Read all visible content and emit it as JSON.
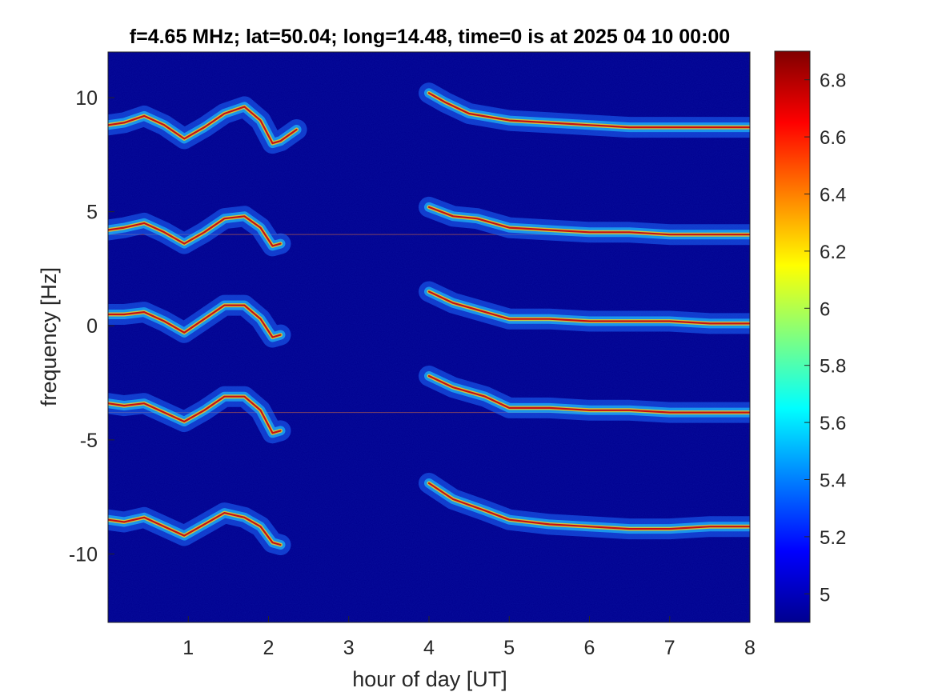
{
  "chart_data": {
    "type": "heatmap",
    "title": "f=4.65 MHz;  lat=50.04; long=14.48, time=0 is at 2025 04 10 00:00",
    "xlabel": "hour of day [UT]",
    "ylabel": "frequency [Hz]",
    "xlim": [
      0,
      8
    ],
    "ylim": [
      -13,
      12
    ],
    "xticks": [
      1,
      2,
      3,
      4,
      5,
      6,
      7,
      8
    ],
    "xtick_labels": [
      "1",
      "2",
      "3",
      "4",
      "5",
      "6",
      "7",
      "8"
    ],
    "yticks": [
      -10,
      -5,
      0,
      5,
      10
    ],
    "ytick_labels": [
      "-10",
      "-5",
      "0",
      "5",
      "10"
    ],
    "grid": false,
    "colormap": "jet",
    "colorbar": {
      "clim": [
        4.9,
        6.9
      ],
      "ticks": [
        5,
        5.2,
        5.4,
        5.6,
        5.8,
        6,
        6.2,
        6.4,
        6.6,
        6.8
      ],
      "tick_labels": [
        "5",
        "5.2",
        "5.4",
        "5.6",
        "5.8",
        "6",
        "6.2",
        "6.4",
        "6.6",
        "6.8"
      ]
    },
    "background_level": 4.95,
    "traces": [
      {
        "offset": 8.9,
        "points": [
          [
            0,
            8.8
          ],
          [
            0.2,
            8.9
          ],
          [
            0.45,
            9.2
          ],
          [
            0.7,
            8.8
          ],
          [
            0.95,
            8.2
          ],
          [
            1.2,
            8.7
          ],
          [
            1.45,
            9.3
          ],
          [
            1.7,
            9.6
          ],
          [
            1.9,
            9.0
          ],
          [
            2.05,
            8.0
          ],
          [
            2.15,
            8.1
          ],
          [
            2.35,
            8.6
          ],
          [
            4.0,
            10.2
          ],
          [
            4.2,
            9.8
          ],
          [
            4.5,
            9.3
          ],
          [
            5.0,
            9.0
          ],
          [
            5.5,
            8.9
          ],
          [
            6.0,
            8.8
          ],
          [
            6.5,
            8.7
          ],
          [
            7.0,
            8.7
          ],
          [
            7.5,
            8.7
          ],
          [
            8.0,
            8.7
          ]
        ]
      },
      {
        "offset": 4.0,
        "points": [
          [
            0,
            4.2
          ],
          [
            0.2,
            4.3
          ],
          [
            0.45,
            4.5
          ],
          [
            0.7,
            4.1
          ],
          [
            0.95,
            3.6
          ],
          [
            1.2,
            4.1
          ],
          [
            1.45,
            4.7
          ],
          [
            1.7,
            4.8
          ],
          [
            1.9,
            4.3
          ],
          [
            2.05,
            3.5
          ],
          [
            2.15,
            3.6
          ],
          [
            4.0,
            5.2
          ],
          [
            4.3,
            4.8
          ],
          [
            4.6,
            4.7
          ],
          [
            5.0,
            4.3
          ],
          [
            5.5,
            4.2
          ],
          [
            6.0,
            4.1
          ],
          [
            6.5,
            4.1
          ],
          [
            7.0,
            4.0
          ],
          [
            7.5,
            4.0
          ],
          [
            8.0,
            4.0
          ]
        ]
      },
      {
        "offset": 0.4,
        "points": [
          [
            0,
            0.5
          ],
          [
            0.2,
            0.5
          ],
          [
            0.45,
            0.6
          ],
          [
            0.7,
            0.2
          ],
          [
            0.95,
            -0.3
          ],
          [
            1.2,
            0.3
          ],
          [
            1.45,
            0.9
          ],
          [
            1.7,
            0.9
          ],
          [
            1.9,
            0.3
          ],
          [
            2.05,
            -0.5
          ],
          [
            2.15,
            -0.4
          ],
          [
            4.0,
            1.5
          ],
          [
            4.3,
            1.0
          ],
          [
            4.7,
            0.6
          ],
          [
            5.0,
            0.3
          ],
          [
            5.5,
            0.3
          ],
          [
            6.0,
            0.2
          ],
          [
            6.5,
            0.2
          ],
          [
            7.0,
            0.2
          ],
          [
            7.5,
            0.1
          ],
          [
            8.0,
            0.1
          ]
        ]
      },
      {
        "offset": -3.6,
        "points": [
          [
            0,
            -3.4
          ],
          [
            0.2,
            -3.5
          ],
          [
            0.45,
            -3.4
          ],
          [
            0.7,
            -3.8
          ],
          [
            0.95,
            -4.2
          ],
          [
            1.2,
            -3.7
          ],
          [
            1.45,
            -3.1
          ],
          [
            1.7,
            -3.1
          ],
          [
            1.9,
            -3.7
          ],
          [
            2.05,
            -4.7
          ],
          [
            2.15,
            -4.6
          ],
          [
            4.0,
            -2.2
          ],
          [
            4.3,
            -2.7
          ],
          [
            4.7,
            -3.1
          ],
          [
            5.0,
            -3.6
          ],
          [
            5.5,
            -3.6
          ],
          [
            6.0,
            -3.7
          ],
          [
            6.5,
            -3.7
          ],
          [
            7.0,
            -3.8
          ],
          [
            7.5,
            -3.8
          ],
          [
            8.0,
            -3.8
          ]
        ]
      },
      {
        "offset": -8.5,
        "points": [
          [
            0,
            -8.5
          ],
          [
            0.2,
            -8.6
          ],
          [
            0.45,
            -8.4
          ],
          [
            0.7,
            -8.8
          ],
          [
            0.95,
            -9.2
          ],
          [
            1.2,
            -8.7
          ],
          [
            1.45,
            -8.2
          ],
          [
            1.7,
            -8.4
          ],
          [
            1.9,
            -8.8
          ],
          [
            2.05,
            -9.5
          ],
          [
            2.15,
            -9.6
          ],
          [
            4.0,
            -6.9
          ],
          [
            4.3,
            -7.6
          ],
          [
            4.7,
            -8.1
          ],
          [
            5.0,
            -8.5
          ],
          [
            5.5,
            -8.7
          ],
          [
            6.0,
            -8.8
          ],
          [
            6.5,
            -8.9
          ],
          [
            7.0,
            -8.9
          ],
          [
            7.5,
            -8.8
          ],
          [
            8.0,
            -8.8
          ]
        ]
      }
    ],
    "carrier_lines": [
      4.0,
      -3.8
    ]
  }
}
